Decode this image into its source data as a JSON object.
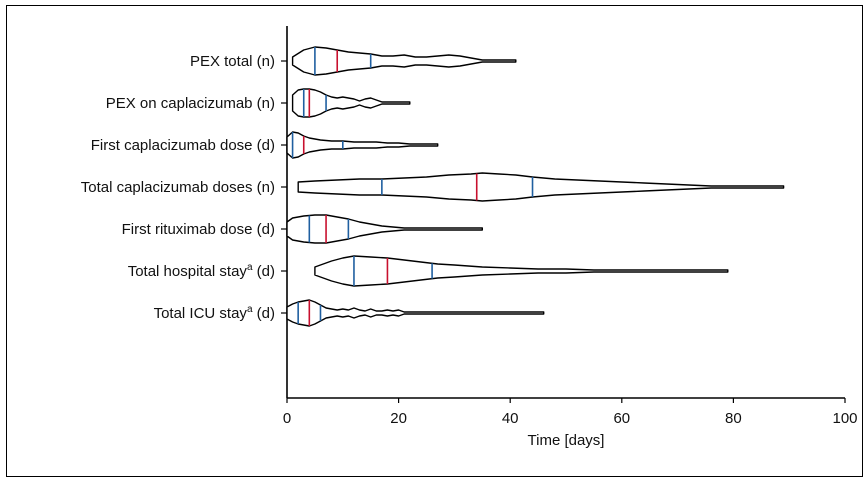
{
  "chart_data": {
    "type": "violin",
    "title": "",
    "xlabel": "Time [days]",
    "ylabel": "",
    "xlim": [
      0,
      100
    ],
    "xticks": [
      0,
      20,
      40,
      60,
      80,
      100
    ],
    "grid": false,
    "legend": "none",
    "colors": {
      "outline": "#000000",
      "quartile": "#1f5fa0",
      "median": "#c8102e"
    },
    "categories": [
      {
        "label": "PEX total (n)",
        "sup": "",
        "suffix": "",
        "min": 1,
        "q1": 5,
        "median": 9,
        "q3": 15,
        "max": 41,
        "density": [
          [
            1,
            4
          ],
          [
            3,
            11
          ],
          [
            5,
            14
          ],
          [
            7,
            13
          ],
          [
            9,
            11
          ],
          [
            11,
            9
          ],
          [
            13,
            8
          ],
          [
            15,
            7
          ],
          [
            17,
            5
          ],
          [
            19,
            5
          ],
          [
            21,
            6
          ],
          [
            23,
            4
          ],
          [
            25,
            4
          ],
          [
            27,
            5
          ],
          [
            29,
            6
          ],
          [
            31,
            5
          ],
          [
            33,
            3
          ],
          [
            35,
            1
          ],
          [
            37,
            1
          ],
          [
            39,
            1
          ],
          [
            41,
            1
          ]
        ]
      },
      {
        "label": "PEX on caplacizumab (n)",
        "sup": "",
        "suffix": "",
        "min": 1,
        "q1": 3,
        "median": 4,
        "q3": 7,
        "max": 22,
        "density": [
          [
            1,
            8
          ],
          [
            2,
            13
          ],
          [
            3,
            14
          ],
          [
            4,
            14
          ],
          [
            5,
            13
          ],
          [
            6,
            11
          ],
          [
            7,
            8
          ],
          [
            8,
            6
          ],
          [
            9,
            5
          ],
          [
            10,
            6
          ],
          [
            11,
            5
          ],
          [
            12,
            4
          ],
          [
            13,
            2
          ],
          [
            14,
            4
          ],
          [
            15,
            5
          ],
          [
            16,
            3
          ],
          [
            17,
            1
          ],
          [
            19,
            1
          ],
          [
            22,
            1
          ]
        ]
      },
      {
        "label": "First caplacizumab dose (d)",
        "sup": "",
        "suffix": "",
        "min": 0,
        "q1": 1,
        "median": 3,
        "q3": 10,
        "max": 27,
        "density": [
          [
            0,
            8
          ],
          [
            1,
            13
          ],
          [
            2,
            12
          ],
          [
            3,
            9
          ],
          [
            4,
            7
          ],
          [
            6,
            5
          ],
          [
            8,
            4
          ],
          [
            10,
            4
          ],
          [
            12,
            3
          ],
          [
            14,
            3
          ],
          [
            16,
            3
          ],
          [
            18,
            2
          ],
          [
            20,
            2
          ],
          [
            22,
            1
          ],
          [
            24,
            1
          ],
          [
            27,
            1
          ]
        ]
      },
      {
        "label": "Total caplacizumab doses (n)",
        "sup": "",
        "suffix": "",
        "min": 2,
        "q1": 17,
        "median": 34,
        "q3": 44,
        "max": 89,
        "density": [
          [
            2,
            5
          ],
          [
            5,
            6
          ],
          [
            9,
            7
          ],
          [
            13,
            8
          ],
          [
            17,
            8
          ],
          [
            21,
            9
          ],
          [
            25,
            10
          ],
          [
            29,
            12
          ],
          [
            33,
            13
          ],
          [
            35,
            14
          ],
          [
            38,
            13
          ],
          [
            41,
            12
          ],
          [
            44,
            10
          ],
          [
            48,
            8
          ],
          [
            52,
            7
          ],
          [
            56,
            6
          ],
          [
            60,
            5
          ],
          [
            64,
            4
          ],
          [
            68,
            3
          ],
          [
            72,
            2
          ],
          [
            76,
            1
          ],
          [
            80,
            1
          ],
          [
            84,
            1
          ],
          [
            89,
            1
          ]
        ]
      },
      {
        "label": "First rituximab dose (d)",
        "sup": "",
        "suffix": "",
        "min": 0,
        "q1": 4,
        "median": 7,
        "q3": 11,
        "max": 35,
        "density": [
          [
            0,
            7
          ],
          [
            1,
            11
          ],
          [
            3,
            13
          ],
          [
            5,
            14
          ],
          [
            7,
            14
          ],
          [
            9,
            12
          ],
          [
            11,
            10
          ],
          [
            13,
            7
          ],
          [
            15,
            5
          ],
          [
            17,
            3
          ],
          [
            19,
            2
          ],
          [
            21,
            1
          ],
          [
            25,
            1
          ],
          [
            30,
            1
          ],
          [
            35,
            1
          ]
        ]
      },
      {
        "label": "Total hospital stay",
        "sup": "a",
        "suffix": " (d)",
        "min": 5,
        "q1": 12,
        "median": 18,
        "q3": 26,
        "max": 79,
        "density": [
          [
            5,
            4
          ],
          [
            8,
            10
          ],
          [
            10,
            13
          ],
          [
            12,
            15
          ],
          [
            15,
            14
          ],
          [
            18,
            13
          ],
          [
            21,
            11
          ],
          [
            24,
            9
          ],
          [
            27,
            7
          ],
          [
            30,
            6
          ],
          [
            35,
            4
          ],
          [
            40,
            3
          ],
          [
            45,
            2
          ],
          [
            50,
            2
          ],
          [
            55,
            1
          ],
          [
            60,
            1
          ],
          [
            65,
            1
          ],
          [
            70,
            1
          ],
          [
            75,
            1
          ],
          [
            79,
            1
          ]
        ]
      },
      {
        "label": "Total ICU stay",
        "sup": "a",
        "suffix": " (d)",
        "min": 0,
        "q1": 2,
        "median": 4,
        "q3": 6,
        "max": 46,
        "density": [
          [
            0,
            6
          ],
          [
            1,
            9
          ],
          [
            2,
            11
          ],
          [
            3,
            12
          ],
          [
            4,
            13
          ],
          [
            5,
            11
          ],
          [
            6,
            8
          ],
          [
            7,
            5
          ],
          [
            8,
            4
          ],
          [
            9,
            3
          ],
          [
            10,
            4
          ],
          [
            11,
            3
          ],
          [
            12,
            5
          ],
          [
            13,
            3
          ],
          [
            14,
            2
          ],
          [
            15,
            4
          ],
          [
            16,
            2
          ],
          [
            17,
            2
          ],
          [
            18,
            3
          ],
          [
            19,
            2
          ],
          [
            20,
            3
          ],
          [
            21,
            1
          ],
          [
            25,
            1
          ],
          [
            30,
            1
          ],
          [
            35,
            1
          ],
          [
            40,
            1
          ],
          [
            46,
            1
          ]
        ]
      }
    ]
  }
}
